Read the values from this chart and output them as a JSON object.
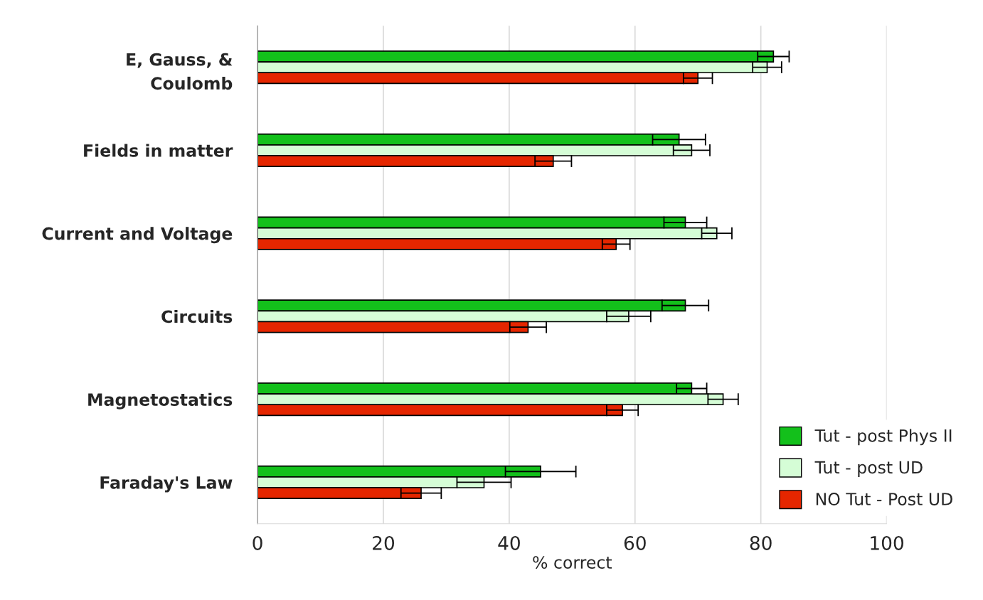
{
  "chart_data": {
    "type": "bar",
    "orientation": "horizontal",
    "xlabel": "% correct",
    "categories": [
      "E, Gauss, &\nCoulomb",
      "Fields in matter",
      "Current and Voltage",
      "Circuits",
      "Magnetostatics",
      "Faraday's Law"
    ],
    "series": [
      {
        "name": "Tut - post Phys II",
        "color": "#13c01b",
        "values": [
          82,
          67,
          68,
          68,
          69,
          45
        ],
        "errors": [
          2.5,
          4.2,
          3.4,
          3.7,
          2.4,
          5.6
        ]
      },
      {
        "name": "Tut - post UD",
        "color": "#d5fdd6",
        "values": [
          81,
          69,
          73,
          59,
          74,
          36
        ],
        "errors": [
          2.3,
          2.9,
          2.4,
          3.5,
          2.4,
          4.3
        ]
      },
      {
        "name": "NO Tut - Post UD",
        "color": "#e52600",
        "values": [
          70,
          47,
          57,
          43,
          58,
          26
        ],
        "errors": [
          2.3,
          2.9,
          2.2,
          2.9,
          2.5,
          3.2
        ]
      }
    ],
    "xlim": [
      0,
      100
    ],
    "xticks": [
      0,
      20,
      40,
      60,
      80,
      100
    ],
    "grid": "x",
    "legend": "bottom right"
  }
}
